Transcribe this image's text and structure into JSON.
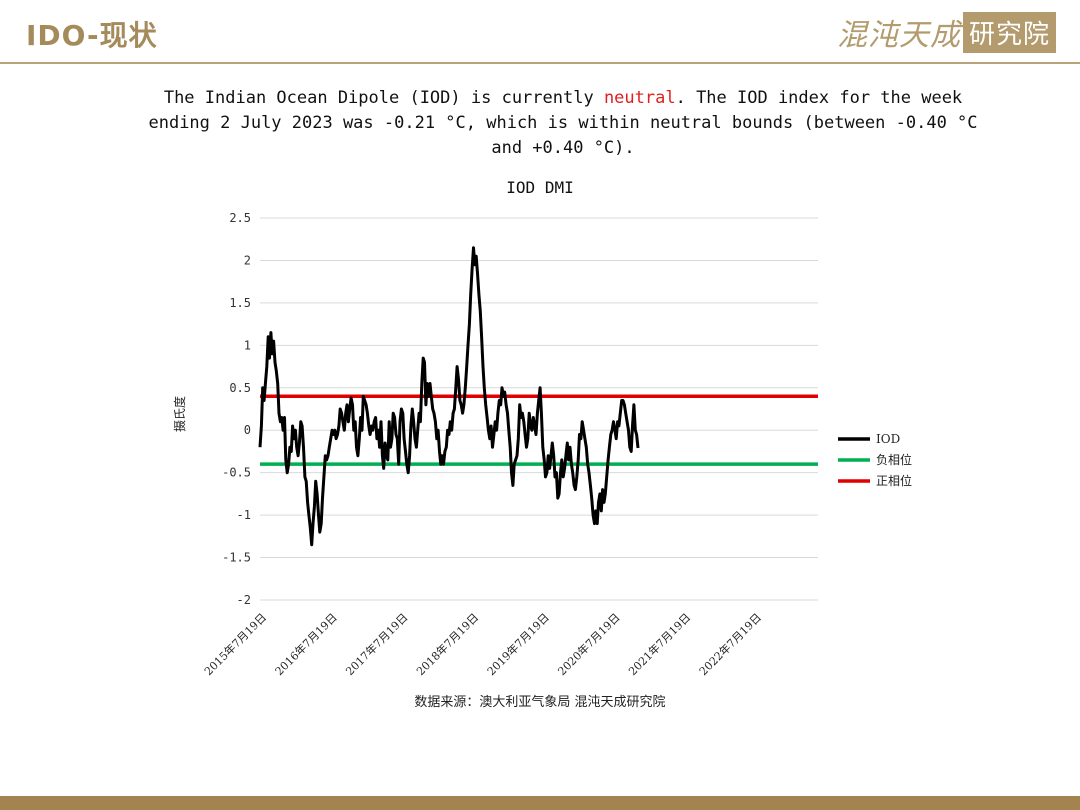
{
  "header": {
    "title": "IDO-现状",
    "brand_script": "混沌天成",
    "brand_box": "研究院"
  },
  "description": {
    "part1": "The Indian Ocean Dipole (IOD) is currently ",
    "highlight": "neutral",
    "part2": ". The IOD index for the week ending 2 July 2023 was -0.21 °C, which is within neutral bounds (between -0.40 °C and +0.40 °C)."
  },
  "source": "数据来源：澳大利亚气象局 混沌天成研究院",
  "colors": {
    "accent_gold": "#a58a5b",
    "iod_line": "#000000",
    "negative_phase": "#00b050",
    "positive_phase": "#e00000",
    "neutral_highlight": "#e02020"
  },
  "chart_data": {
    "type": "line",
    "title": "IOD DMI",
    "ylabel": "摄氏度",
    "xlabel": "",
    "ylim": [
      -2,
      2.5
    ],
    "yticks": [
      2.5,
      2,
      1.5,
      1,
      0.5,
      0,
      -0.5,
      -1,
      -1.5,
      -2
    ],
    "ytick_labels": [
      "2.5",
      "2",
      "1.5",
      "1",
      "0.5",
      "0",
      "-0.5",
      "-1",
      "-1.5",
      "-2"
    ],
    "xtick_labels": [
      "2015年7月19日",
      "2016年7月19日",
      "2017年7月19日",
      "2018年7月19日",
      "2019年7月19日",
      "2020年7月19日",
      "2021年7月19日",
      "2022年7月19日"
    ],
    "x_start": "2015年7月19日",
    "x_step": "1 week",
    "grid": "horizontal",
    "legend_position": "right",
    "series": [
      {
        "name": "IOD",
        "values": [
          -0.2,
          0.05,
          0.5,
          0.35,
          0.55,
          0.75,
          1.1,
          0.85,
          1.15,
          0.9,
          1.05,
          0.8,
          0.7,
          0.55,
          0.2,
          0.1,
          0.15,
          0.0,
          0.15,
          -0.35,
          -0.5,
          -0.4,
          -0.2,
          -0.25,
          0.05,
          -0.1,
          0.0,
          -0.2,
          -0.3,
          -0.15,
          0.1,
          0.05,
          -0.2,
          -0.55,
          -0.6,
          -0.85,
          -1.0,
          -1.15,
          -1.35,
          -1.1,
          -0.9,
          -0.6,
          -0.75,
          -1.0,
          -1.2,
          -1.1,
          -0.8,
          -0.55,
          -0.3,
          -0.35,
          -0.3,
          -0.2,
          -0.1,
          0.0,
          -0.05,
          0.0,
          -0.1,
          -0.05,
          0.05,
          0.25,
          0.2,
          0.1,
          0.0,
          0.2,
          0.3,
          0.1,
          0.25,
          0.38,
          0.3,
          0.0,
          0.1,
          -0.2,
          -0.3,
          -0.1,
          0.15,
          0.0,
          0.4,
          0.35,
          0.3,
          0.2,
          0.05,
          -0.05,
          0.05,
          0.0,
          0.1,
          0.15,
          -0.1,
          0.0,
          -0.2,
          0.1,
          -0.3,
          -0.45,
          -0.15,
          -0.3,
          -0.35,
          0.1,
          -0.2,
          -0.1,
          0.2,
          0.15,
          -0.05,
          -0.1,
          -0.4,
          0.1,
          0.25,
          0.2,
          -0.1,
          -0.25,
          -0.4,
          -0.5,
          -0.3,
          0.05,
          0.25,
          0.1,
          -0.1,
          -0.2,
          0.0,
          0.2,
          0.1,
          0.55,
          0.85,
          0.8,
          0.3,
          0.55,
          0.4,
          0.55,
          0.4,
          0.25,
          0.2,
          0.1,
          -0.1,
          0.0,
          -0.25,
          -0.4,
          -0.3,
          -0.4,
          -0.25,
          -0.2,
          0.0,
          -0.05,
          0.1,
          0.0,
          0.2,
          0.25,
          0.5,
          0.75,
          0.6,
          0.35,
          0.3,
          0.2,
          0.3,
          0.5,
          0.75,
          1.0,
          1.25,
          1.6,
          1.9,
          2.15,
          1.95,
          2.05,
          1.85,
          1.6,
          1.4,
          1.1,
          0.75,
          0.5,
          0.3,
          0.15,
          0.0,
          -0.1,
          0.05,
          -0.2,
          -0.05,
          0.1,
          0.0,
          0.2,
          0.35,
          0.3,
          0.5,
          0.4,
          0.45,
          0.3,
          0.2,
          0.0,
          -0.2,
          -0.5,
          -0.65,
          -0.4,
          -0.35,
          -0.3,
          -0.1,
          0.3,
          0.15,
          0.2,
          0.1,
          -0.05,
          -0.2,
          -0.1,
          0.2,
          0.05,
          0.0,
          0.15,
          0.05,
          -0.05,
          0.2,
          0.35,
          0.5,
          0.2,
          -0.2,
          -0.35,
          -0.55,
          -0.5,
          -0.3,
          -0.45,
          -0.3,
          -0.15,
          -0.3,
          -0.55,
          -0.5,
          -0.8,
          -0.75,
          -0.5,
          -0.35,
          -0.55,
          -0.45,
          -0.3,
          -0.15,
          -0.35,
          -0.2,
          -0.4,
          -0.5,
          -0.65,
          -0.7,
          -0.55,
          -0.35,
          -0.05,
          -0.1,
          0.1,
          0.0,
          -0.1,
          -0.2,
          -0.4,
          -0.5,
          -0.65,
          -0.8,
          -1.0,
          -1.1,
          -0.95,
          -1.1,
          -0.85,
          -0.75,
          -0.95,
          -0.7,
          -0.85,
          -0.75,
          -0.55,
          -0.35,
          -0.2,
          -0.05,
          0.0,
          0.1,
          0.0,
          -0.1,
          0.1,
          0.05,
          0.2,
          0.35,
          0.35,
          0.3,
          0.2,
          0.1,
          0.0,
          -0.2,
          -0.25,
          0.05,
          0.3,
          0.0,
          -0.05,
          -0.21
        ]
      },
      {
        "name": "负相位",
        "constant": -0.4
      },
      {
        "name": "正相位",
        "constant": 0.4
      }
    ]
  }
}
